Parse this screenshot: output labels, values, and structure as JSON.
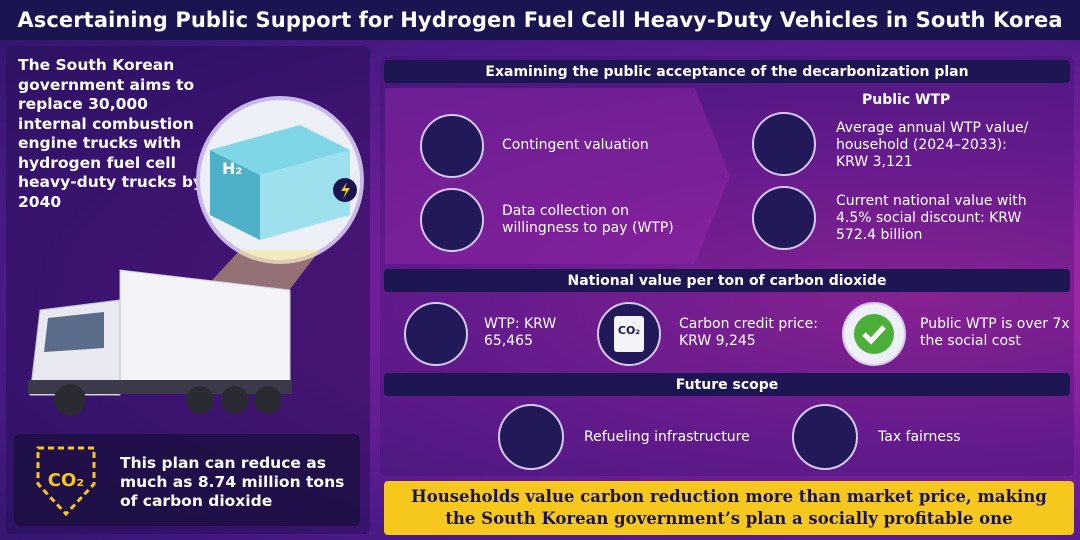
{
  "header": {
    "title": "Ascertaining Public Support for Hydrogen Fuel Cell Heavy-Duty Vehicles in South Korea"
  },
  "left": {
    "intro": "The South Korean government aims to replace 30,000 internal combustion engine trucks with hydrogen fuel cell heavy-duty trucks by 2040",
    "container_label": "H₂",
    "icon_label": "CO₂",
    "reduction": "This plan can reduce as much as 8.74 million tons of carbon dioxide"
  },
  "acceptance": {
    "heading": "Examining the public acceptance of the decarbonization plan",
    "methods": [
      "Contingent valuation",
      "Data collection on willingness to pay (WTP)"
    ],
    "wtp_heading": "Public WTP",
    "results": [
      "Average annual  WTP value/ household (2024–2033): KRW 3,121",
      "Current national value with 4.5% social discount: KRW 572.4 billion"
    ]
  },
  "national_value": {
    "heading": "National value per ton of carbon dioxide",
    "icon_label": "CO₂",
    "items": [
      "WTP: KRW 65,465",
      "Carbon credit price: KRW 9,245",
      "Public WTP is over 7x the social cost"
    ]
  },
  "future": {
    "heading": "Future scope",
    "items": [
      "Refueling infrastructure",
      "Tax fairness"
    ]
  },
  "conclusion": "Households value carbon reduction more than market price, making the South Korean government’s plan a socially profitable one"
}
